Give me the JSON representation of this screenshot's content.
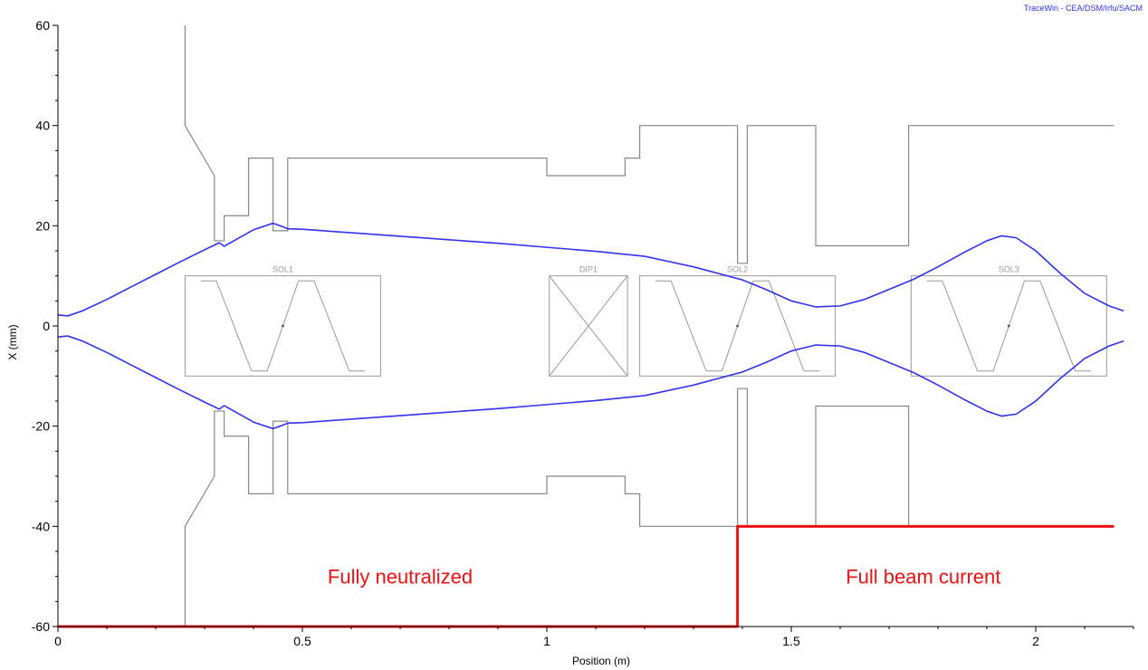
{
  "chart_data": {
    "type": "line",
    "title": "",
    "credit": "TraceWin - CEA/DSM/Irfu/SACM",
    "xlabel": "Position (m)",
    "ylabel": "X (mm)",
    "xlim": [
      0,
      2.2
    ],
    "ylim": [
      -60,
      60
    ],
    "x_ticks": [
      0,
      0.5,
      1,
      1.5,
      2
    ],
    "x_tick_labels": [
      "0",
      "0.5",
      "1",
      "1.5",
      "2"
    ],
    "y_ticks": [
      -60,
      -40,
      -20,
      0,
      20,
      40,
      60
    ],
    "y_tick_labels": [
      "-60",
      "-40",
      "-20",
      "0",
      "20",
      "40",
      "60"
    ],
    "grid": false,
    "colors": {
      "envelope": "#3333ee",
      "aperture": "#888888",
      "element": "#999999",
      "neutralization": "#ee1111"
    },
    "series": [
      {
        "values_x": [
          0,
          0.02,
          0.05,
          0.1,
          0.15,
          0.2,
          0.25,
          0.3,
          0.33,
          0.34,
          0.36,
          0.4,
          0.44,
          0.46,
          0.47,
          0.5,
          0.6,
          0.7,
          0.8,
          0.9,
          1.0,
          1.1,
          1.2,
          1.3,
          1.4,
          1.45,
          1.5,
          1.55,
          1.6,
          1.65,
          1.7,
          1.75,
          1.8,
          1.85,
          1.9,
          1.93,
          1.96,
          2.0,
          2.05,
          2.1,
          2.15,
          2.18
        ],
        "values_y": [
          2.2,
          2.0,
          3.0,
          5.3,
          7.8,
          10.3,
          12.8,
          15.2,
          16.6,
          15.9,
          17.0,
          19.2,
          20.5,
          19.8,
          19.4,
          19.3,
          18.6,
          17.9,
          17.2,
          16.5,
          15.7,
          14.9,
          13.9,
          11.8,
          9.2,
          7.2,
          5.0,
          3.8,
          4.0,
          5.3,
          7.3,
          9.3,
          11.8,
          14.5,
          17.0,
          18.0,
          17.6,
          15.0,
          10.5,
          6.5,
          4.0,
          3.0
        ]
      },
      {
        "values_x": [
          0,
          0.02,
          0.05,
          0.1,
          0.15,
          0.2,
          0.25,
          0.3,
          0.33,
          0.34,
          0.36,
          0.4,
          0.44,
          0.46,
          0.47,
          0.5,
          0.6,
          0.7,
          0.8,
          0.9,
          1.0,
          1.1,
          1.2,
          1.3,
          1.4,
          1.45,
          1.5,
          1.55,
          1.6,
          1.65,
          1.7,
          1.75,
          1.8,
          1.85,
          1.9,
          1.93,
          1.96,
          2.0,
          2.05,
          2.1,
          2.15,
          2.18
        ],
        "values_y": [
          -2.2,
          -2.0,
          -3.0,
          -5.3,
          -7.8,
          -10.3,
          -12.8,
          -15.2,
          -16.6,
          -15.9,
          -17.0,
          -19.2,
          -20.5,
          -19.8,
          -19.4,
          -19.3,
          -18.6,
          -17.9,
          -17.2,
          -16.5,
          -15.7,
          -14.9,
          -13.9,
          -11.8,
          -9.2,
          -7.2,
          -5.0,
          -3.8,
          -4.0,
          -5.3,
          -7.3,
          -9.3,
          -11.8,
          -14.5,
          -17.0,
          -18.0,
          -17.6,
          -15.0,
          -10.5,
          -6.5,
          -4.0,
          -3.0
        ]
      },
      {
        "values_x": [
          0,
          1.39,
          1.39,
          2.16
        ],
        "values_y": [
          -60,
          -60,
          -40,
          -40
        ]
      }
    ],
    "aperture_top": {
      "values_x": [
        0.26,
        0.26,
        0.32,
        0.32,
        0.34,
        0.34,
        0.39,
        0.39,
        0.44,
        0.44,
        0.47,
        0.47,
        1.0,
        1.0,
        1.16,
        1.16,
        1.19,
        1.19,
        1.39,
        1.39,
        1.41,
        1.41,
        1.55,
        1.55,
        1.65,
        1.65,
        1.66,
        1.66,
        1.74,
        1.74,
        1.76,
        1.76,
        2.16
      ],
      "values_y": [
        60,
        40,
        30,
        17,
        17,
        22,
        22,
        33.5,
        33.5,
        19,
        19,
        33.5,
        33.5,
        30,
        30,
        33.5,
        33.5,
        40,
        40,
        12.5,
        12.5,
        40,
        40,
        16,
        16,
        16,
        16,
        16,
        16,
        40,
        40,
        40,
        40
      ]
    },
    "elements": [
      {
        "label": "SOL1",
        "x_start": 0.26,
        "x_end": 0.66,
        "center": 0.46,
        "kind": "solenoid"
      },
      {
        "label": "DIP1",
        "x_start": 1.005,
        "x_end": 1.165,
        "center": 1.085,
        "kind": "dipole"
      },
      {
        "label": "SOL2",
        "x_start": 1.19,
        "x_end": 1.59,
        "center": 1.39,
        "kind": "solenoid"
      },
      {
        "label": "SOL3",
        "x_start": 1.745,
        "x_end": 2.145,
        "center": 1.945,
        "kind": "solenoid"
      }
    ],
    "annotations": [
      {
        "text": "Fully neutralized",
        "x": 0.7,
        "y": -50
      },
      {
        "text": "Full beam current",
        "x": 1.77,
        "y": -50
      }
    ]
  }
}
